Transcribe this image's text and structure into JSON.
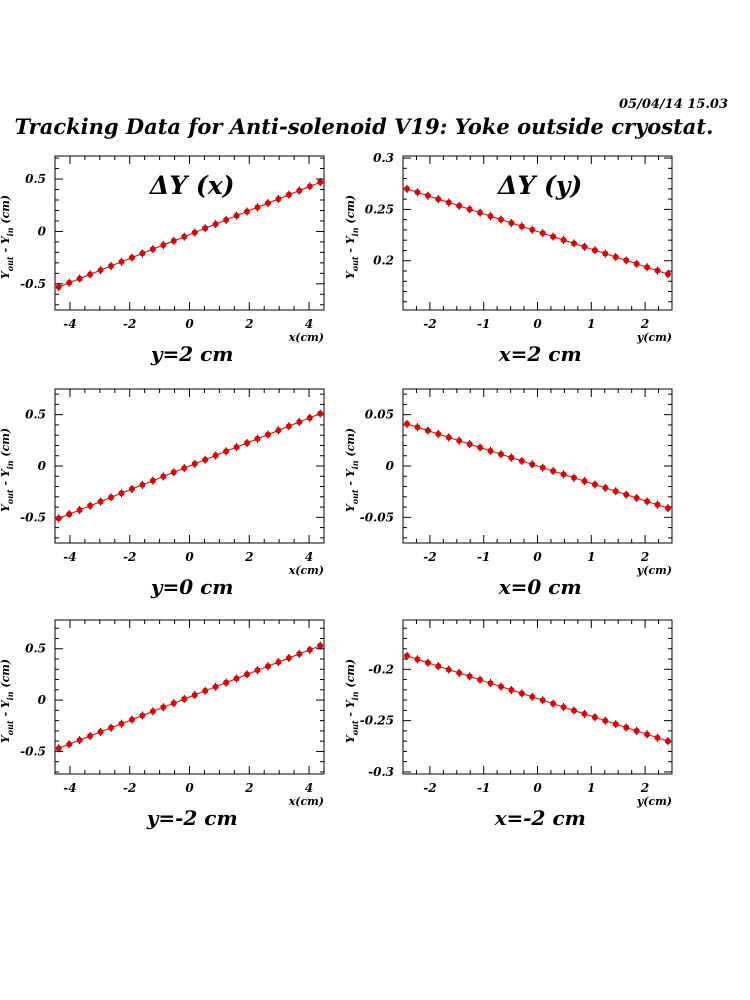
{
  "header": {
    "stamp": "05/04/14   15.03",
    "title": "Tracking Data for Anti-solenoid V19: Yoke outside cryostat."
  },
  "colors": {
    "marker": "#e00000",
    "axis": "#000000"
  },
  "chart_data": [
    {
      "type": "scatter",
      "id": "dy-x-ypos2",
      "annotation": "ΔY (x)",
      "caption": "y=2 cm",
      "xlabel": "x(cm)",
      "ylabel": {
        "base": "Y",
        "sub1": "out",
        "mid": " - Y",
        "sub2": "in",
        "tail": " (cm)"
      },
      "xlim": [
        -4.5,
        4.5
      ],
      "ylim": [
        -0.75,
        0.72
      ],
      "xticks": [
        -4,
        -2,
        0,
        2,
        4
      ],
      "yticks": [
        -0.5,
        0,
        0.5
      ],
      "xtick_labels": [
        "-4",
        "-2",
        "0",
        "2",
        "4"
      ],
      "ytick_labels": [
        "-0.5",
        "0",
        "0.5"
      ],
      "x_range": [
        -4.375,
        4.375
      ],
      "y_start": -0.53,
      "y_end": 0.47,
      "n_points": 26
    },
    {
      "type": "scatter",
      "id": "dy-y-xpos2",
      "annotation": "ΔY (y)",
      "caption": "x=2 cm",
      "xlabel": "y(cm)",
      "ylabel": {
        "base": "Y",
        "sub1": "out",
        "mid": " - Y",
        "sub2": "in",
        "tail": " (cm)"
      },
      "xlim": [
        -2.5,
        2.5
      ],
      "ylim": [
        0.152,
        0.302
      ],
      "xticks": [
        -2,
        -1,
        0,
        1,
        2
      ],
      "yticks": [
        0.2,
        0.25,
        0.3
      ],
      "xtick_labels": [
        "-2",
        "-1",
        "0",
        "1",
        "2"
      ],
      "ytick_labels": [
        "0.2",
        "0.25",
        "0.3"
      ],
      "x_range": [
        -2.425,
        2.425
      ],
      "y_start": 0.27,
      "y_end": 0.187,
      "n_points": 26
    },
    {
      "type": "scatter",
      "id": "dy-x-y0",
      "annotation": "",
      "caption": "y=0 cm",
      "xlabel": "x(cm)",
      "ylabel": {
        "base": "Y",
        "sub1": "out",
        "mid": " - Y",
        "sub2": "in",
        "tail": " (cm)"
      },
      "xlim": [
        -4.5,
        4.5
      ],
      "ylim": [
        -0.75,
        0.75
      ],
      "xticks": [
        -4,
        -2,
        0,
        2,
        4
      ],
      "yticks": [
        -0.5,
        0,
        0.5
      ],
      "xtick_labels": [
        "-4",
        "-2",
        "0",
        "2",
        "4"
      ],
      "ytick_labels": [
        "-0.5",
        "0",
        "0.5"
      ],
      "x_range": [
        -4.375,
        4.375
      ],
      "y_start": -0.51,
      "y_end": 0.51,
      "n_points": 26
    },
    {
      "type": "scatter",
      "id": "dy-y-x0",
      "annotation": "",
      "caption": "x=0 cm",
      "xlabel": "y(cm)",
      "ylabel": {
        "base": "Y",
        "sub1": "out",
        "mid": " - Y",
        "sub2": "in",
        "tail": " (cm)"
      },
      "xlim": [
        -2.5,
        2.5
      ],
      "ylim": [
        -0.075,
        0.075
      ],
      "xticks": [
        -2,
        -1,
        0,
        1,
        2
      ],
      "yticks": [
        -0.05,
        0,
        0.05
      ],
      "xtick_labels": [
        "-2",
        "-1",
        "0",
        "1",
        "2"
      ],
      "ytick_labels": [
        "-0.05",
        "0",
        "0.05"
      ],
      "x_range": [
        -2.425,
        2.425
      ],
      "y_start": 0.041,
      "y_end": -0.041,
      "n_points": 26
    },
    {
      "type": "scatter",
      "id": "dy-x-yneg2",
      "annotation": "",
      "caption": "y=-2 cm",
      "xlabel": "x(cm)",
      "ylabel": {
        "base": "Y",
        "sub1": "out",
        "mid": " - Y",
        "sub2": "in",
        "tail": " (cm)"
      },
      "xlim": [
        -4.5,
        4.5
      ],
      "ylim": [
        -0.72,
        0.78
      ],
      "xticks": [
        -4,
        -2,
        0,
        2,
        4
      ],
      "yticks": [
        -0.5,
        0,
        0.5
      ],
      "xtick_labels": [
        "-4",
        "-2",
        "0",
        "2",
        "4"
      ],
      "ytick_labels": [
        "-0.5",
        "0",
        "0.5"
      ],
      "x_range": [
        -4.375,
        4.375
      ],
      "y_start": -0.47,
      "y_end": 0.53,
      "n_points": 26
    },
    {
      "type": "scatter",
      "id": "dy-y-xneg2",
      "annotation": "",
      "caption": "x=-2 cm",
      "xlabel": "y(cm)",
      "ylabel": {
        "base": "Y",
        "sub1": "out",
        "mid": " - Y",
        "sub2": "in",
        "tail": " (cm)"
      },
      "xlim": [
        -2.5,
        2.5
      ],
      "ylim": [
        -0.302,
        -0.152
      ],
      "xticks": [
        -2,
        -1,
        0,
        1,
        2
      ],
      "yticks": [
        -0.3,
        -0.25,
        -0.2
      ],
      "xtick_labels": [
        "-2",
        "-1",
        "0",
        "1",
        "2"
      ],
      "ytick_labels": [
        "-0.3",
        "-0.25",
        "-0.2"
      ],
      "x_range": [
        -2.425,
        2.425
      ],
      "y_start": -0.187,
      "y_end": -0.27,
      "n_points": 26
    }
  ]
}
